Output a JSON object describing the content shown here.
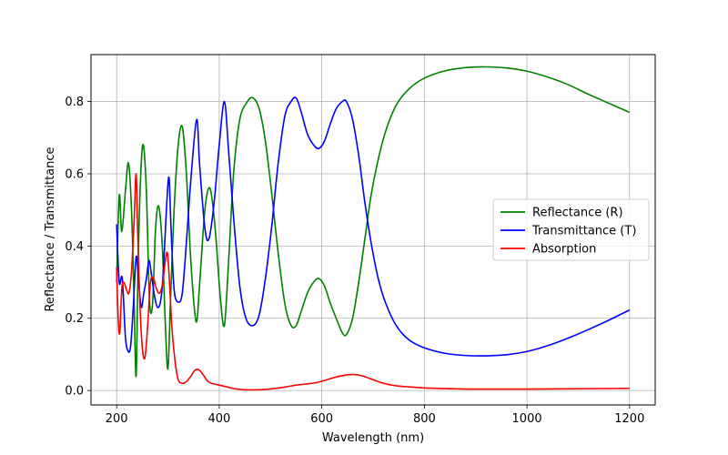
{
  "chart_data": {
    "type": "line",
    "title": "",
    "xlabel": "Wavelength (nm)",
    "ylabel": "Reflectance / Transmittance",
    "xlim": [
      150,
      1250
    ],
    "ylim": [
      -0.04,
      0.93
    ],
    "xticks": [
      200,
      400,
      600,
      800,
      1000,
      1200
    ],
    "yticks": [
      0.0,
      0.2,
      0.4,
      0.6,
      0.8
    ],
    "xtick_labels": [
      "200",
      "400",
      "600",
      "800",
      "1000",
      "1200"
    ],
    "ytick_labels": [
      "0.0",
      "0.2",
      "0.4",
      "0.6",
      "0.8"
    ],
    "grid": true,
    "legend_position": "center-right",
    "series": [
      {
        "name": "Reflectance (R)",
        "color": "#008000",
        "points": [
          [
            200,
            0.3
          ],
          [
            205,
            0.54
          ],
          [
            210,
            0.44
          ],
          [
            217,
            0.55
          ],
          [
            223,
            0.63
          ],
          [
            229,
            0.5
          ],
          [
            234,
            0.25
          ],
          [
            238,
            0.04
          ],
          [
            242,
            0.36
          ],
          [
            247,
            0.6
          ],
          [
            252,
            0.68
          ],
          [
            258,
            0.55
          ],
          [
            264,
            0.25
          ],
          [
            270,
            0.24
          ],
          [
            276,
            0.45
          ],
          [
            282,
            0.51
          ],
          [
            289,
            0.4
          ],
          [
            295,
            0.18
          ],
          [
            300,
            0.06
          ],
          [
            305,
            0.25
          ],
          [
            312,
            0.5
          ],
          [
            320,
            0.68
          ],
          [
            328,
            0.73
          ],
          [
            336,
            0.6
          ],
          [
            345,
            0.35
          ],
          [
            355,
            0.19
          ],
          [
            362,
            0.3
          ],
          [
            372,
            0.5
          ],
          [
            382,
            0.56
          ],
          [
            392,
            0.45
          ],
          [
            402,
            0.26
          ],
          [
            410,
            0.18
          ],
          [
            418,
            0.35
          ],
          [
            428,
            0.6
          ],
          [
            440,
            0.75
          ],
          [
            455,
            0.8
          ],
          [
            466,
            0.81
          ],
          [
            478,
            0.78
          ],
          [
            490,
            0.69
          ],
          [
            502,
            0.55
          ],
          [
            515,
            0.38
          ],
          [
            528,
            0.24
          ],
          [
            540,
            0.18
          ],
          [
            550,
            0.18
          ],
          [
            560,
            0.22
          ],
          [
            572,
            0.27
          ],
          [
            584,
            0.3
          ],
          [
            594,
            0.31
          ],
          [
            605,
            0.29
          ],
          [
            617,
            0.24
          ],
          [
            628,
            0.2
          ],
          [
            640,
            0.16
          ],
          [
            648,
            0.155
          ],
          [
            660,
            0.2
          ],
          [
            672,
            0.3
          ],
          [
            684,
            0.42
          ],
          [
            696,
            0.54
          ],
          [
            710,
            0.64
          ],
          [
            725,
            0.72
          ],
          [
            745,
            0.79
          ],
          [
            770,
            0.835
          ],
          [
            800,
            0.865
          ],
          [
            840,
            0.885
          ],
          [
            880,
            0.894
          ],
          [
            920,
            0.896
          ],
          [
            960,
            0.893
          ],
          [
            1000,
            0.884
          ],
          [
            1040,
            0.868
          ],
          [
            1080,
            0.847
          ],
          [
            1120,
            0.82
          ],
          [
            1160,
            0.795
          ],
          [
            1200,
            0.77
          ]
        ]
      },
      {
        "name": "Transmittance (T)",
        "color": "#0000ff",
        "points": [
          [
            200,
            0.46
          ],
          [
            205,
            0.3
          ],
          [
            211,
            0.31
          ],
          [
            217,
            0.15
          ],
          [
            222,
            0.11
          ],
          [
            227,
            0.12
          ],
          [
            232,
            0.22
          ],
          [
            238,
            0.37
          ],
          [
            243,
            0.3
          ],
          [
            248,
            0.23
          ],
          [
            253,
            0.27
          ],
          [
            258,
            0.31
          ],
          [
            263,
            0.36
          ],
          [
            268,
            0.32
          ],
          [
            274,
            0.26
          ],
          [
            280,
            0.23
          ],
          [
            286,
            0.25
          ],
          [
            291,
            0.33
          ],
          [
            297,
            0.5
          ],
          [
            302,
            0.59
          ],
          [
            306,
            0.45
          ],
          [
            312,
            0.28
          ],
          [
            320,
            0.245
          ],
          [
            328,
            0.27
          ],
          [
            336,
            0.41
          ],
          [
            345,
            0.59
          ],
          [
            356,
            0.75
          ],
          [
            362,
            0.62
          ],
          [
            372,
            0.45
          ],
          [
            380,
            0.42
          ],
          [
            390,
            0.52
          ],
          [
            400,
            0.68
          ],
          [
            410,
            0.8
          ],
          [
            418,
            0.67
          ],
          [
            428,
            0.48
          ],
          [
            440,
            0.29
          ],
          [
            452,
            0.2
          ],
          [
            466,
            0.18
          ],
          [
            478,
            0.21
          ],
          [
            490,
            0.31
          ],
          [
            502,
            0.45
          ],
          [
            515,
            0.63
          ],
          [
            528,
            0.76
          ],
          [
            540,
            0.8
          ],
          [
            550,
            0.81
          ],
          [
            560,
            0.77
          ],
          [
            572,
            0.71
          ],
          [
            584,
            0.68
          ],
          [
            594,
            0.67
          ],
          [
            605,
            0.69
          ],
          [
            617,
            0.74
          ],
          [
            628,
            0.78
          ],
          [
            640,
            0.8
          ],
          [
            648,
            0.8
          ],
          [
            660,
            0.75
          ],
          [
            672,
            0.65
          ],
          [
            684,
            0.52
          ],
          [
            696,
            0.41
          ],
          [
            710,
            0.31
          ],
          [
            725,
            0.24
          ],
          [
            745,
            0.18
          ],
          [
            770,
            0.14
          ],
          [
            800,
            0.118
          ],
          [
            840,
            0.103
          ],
          [
            880,
            0.097
          ],
          [
            920,
            0.096
          ],
          [
            960,
            0.099
          ],
          [
            1000,
            0.108
          ],
          [
            1040,
            0.124
          ],
          [
            1080,
            0.145
          ],
          [
            1120,
            0.169
          ],
          [
            1160,
            0.195
          ],
          [
            1200,
            0.223
          ]
        ]
      },
      {
        "name": "Absorption",
        "color": "#ff0000",
        "points": [
          [
            200,
            0.34
          ],
          [
            203,
            0.2
          ],
          [
            206,
            0.16
          ],
          [
            210,
            0.28
          ],
          [
            214,
            0.3
          ],
          [
            219,
            0.28
          ],
          [
            224,
            0.27
          ],
          [
            229,
            0.33
          ],
          [
            234,
            0.47
          ],
          [
            238,
            0.6
          ],
          [
            241,
            0.44
          ],
          [
            245,
            0.25
          ],
          [
            250,
            0.12
          ],
          [
            255,
            0.09
          ],
          [
            260,
            0.17
          ],
          [
            266,
            0.3
          ],
          [
            272,
            0.31
          ],
          [
            278,
            0.28
          ],
          [
            284,
            0.27
          ],
          [
            290,
            0.3
          ],
          [
            295,
            0.36
          ],
          [
            299,
            0.38
          ],
          [
            303,
            0.3
          ],
          [
            308,
            0.17
          ],
          [
            314,
            0.08
          ],
          [
            320,
            0.03
          ],
          [
            328,
            0.02
          ],
          [
            336,
            0.025
          ],
          [
            345,
            0.04
          ],
          [
            352,
            0.055
          ],
          [
            360,
            0.058
          ],
          [
            368,
            0.045
          ],
          [
            378,
            0.025
          ],
          [
            390,
            0.018
          ],
          [
            400,
            0.015
          ],
          [
            415,
            0.01
          ],
          [
            430,
            0.005
          ],
          [
            450,
            0.002
          ],
          [
            470,
            0.002
          ],
          [
            490,
            0.003
          ],
          [
            510,
            0.006
          ],
          [
            530,
            0.01
          ],
          [
            550,
            0.015
          ],
          [
            570,
            0.018
          ],
          [
            590,
            0.022
          ],
          [
            610,
            0.03
          ],
          [
            630,
            0.038
          ],
          [
            648,
            0.043
          ],
          [
            665,
            0.044
          ],
          [
            680,
            0.04
          ],
          [
            700,
            0.03
          ],
          [
            720,
            0.02
          ],
          [
            745,
            0.013
          ],
          [
            770,
            0.01
          ],
          [
            800,
            0.007
          ],
          [
            850,
            0.005
          ],
          [
            900,
            0.004
          ],
          [
            1000,
            0.004
          ],
          [
            1100,
            0.005
          ],
          [
            1200,
            0.006
          ]
        ]
      }
    ]
  }
}
